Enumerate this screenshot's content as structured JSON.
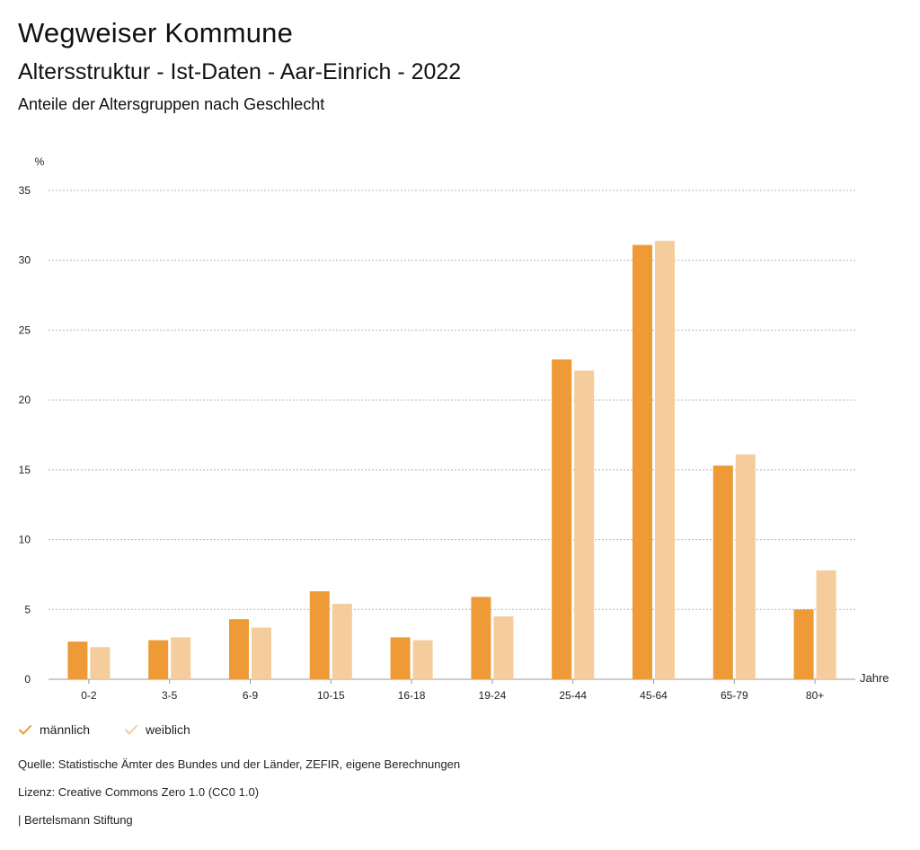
{
  "header": {
    "title": "Wegweiser Kommune",
    "subtitle": "Altersstruktur - Ist-Daten - Aar-Einrich - 2022",
    "caption": "Anteile der Altersgruppen nach Geschlecht"
  },
  "chart_data": {
    "type": "bar",
    "ylabel": "%",
    "xlabel": "Jahre",
    "ylim": [
      0,
      35
    ],
    "yticks": [
      "0",
      "5",
      "10",
      "15",
      "20",
      "25",
      "30",
      "35"
    ],
    "grid": true,
    "legend_position": "bottom-left",
    "categories": [
      "0-2",
      "3-5",
      "6-9",
      "10-15",
      "16-18",
      "19-24",
      "25-44",
      "45-64",
      "65-79",
      "80+"
    ],
    "series": [
      {
        "name": "männlich",
        "color": "#ed9a37",
        "values": [
          2.7,
          2.8,
          4.3,
          6.3,
          3.0,
          5.9,
          22.9,
          31.1,
          15.3,
          5.0
        ]
      },
      {
        "name": "weiblich",
        "color": "#f5cc9b",
        "values": [
          2.3,
          3.0,
          3.7,
          5.4,
          2.8,
          4.5,
          22.1,
          31.4,
          16.1,
          7.8
        ]
      }
    ]
  },
  "footer": {
    "source": "Quelle: Statistische Ämter des Bundes und der Länder, ZEFIR, eigene Berechnungen",
    "license": "Lizenz: Creative Commons Zero 1.0 (CC0 1.0)",
    "brand": "| Bertelsmann Stiftung"
  }
}
